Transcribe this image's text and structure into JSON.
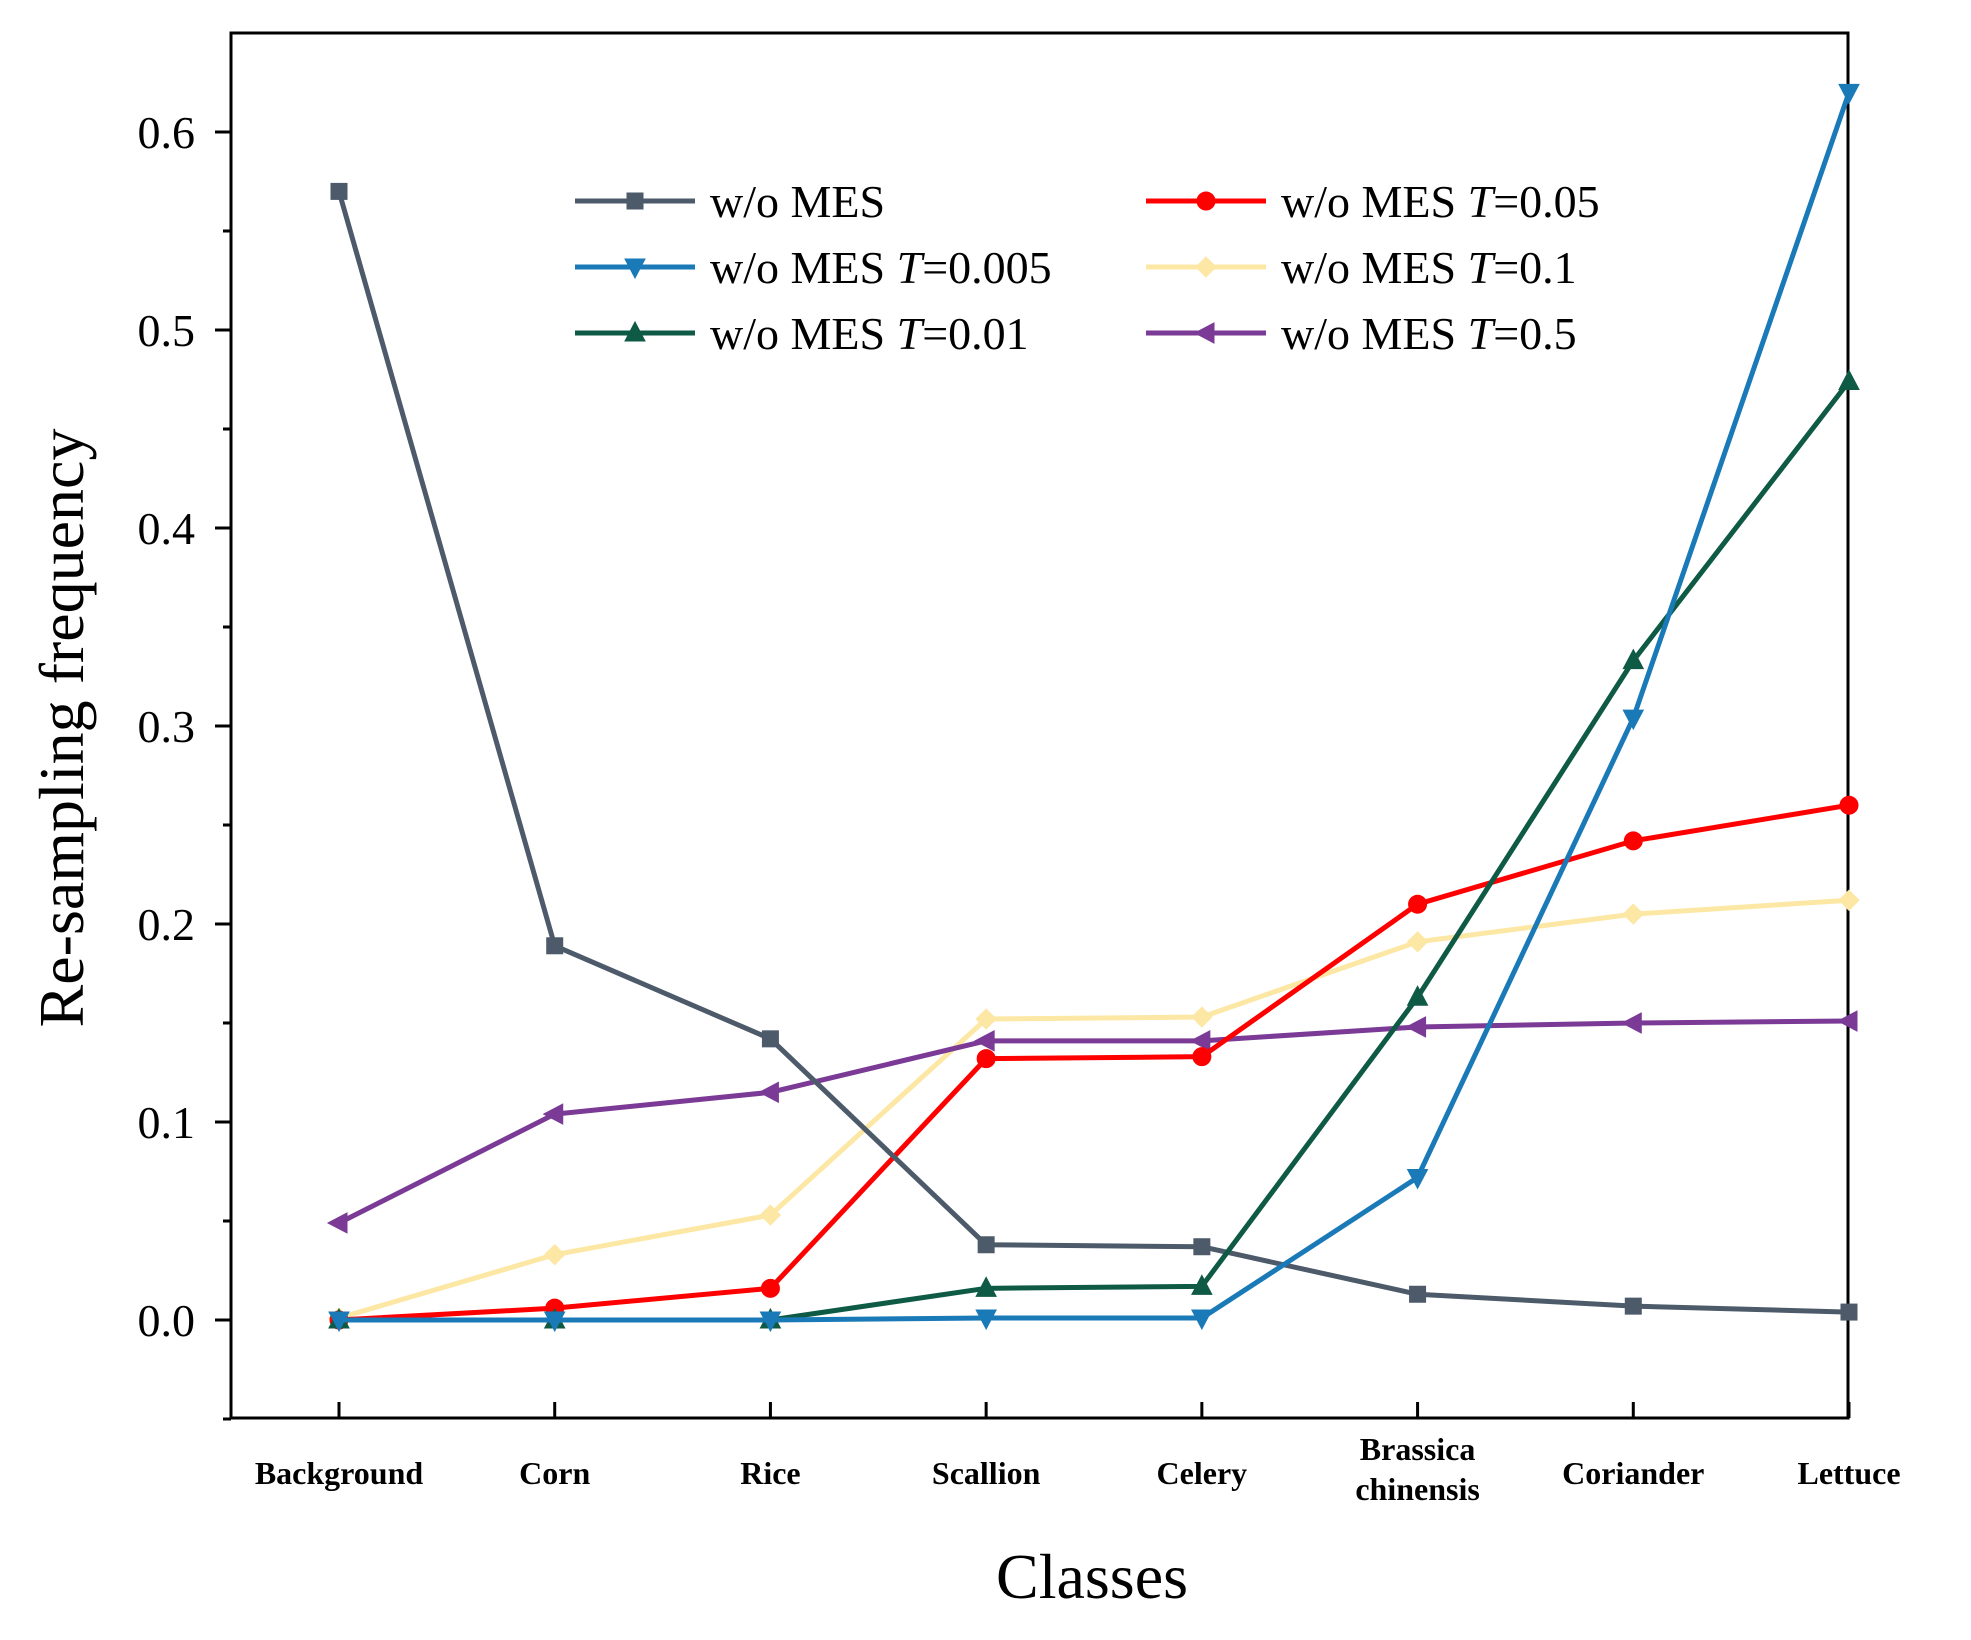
{
  "chart_data": {
    "type": "line",
    "title": "",
    "xlabel": "Classes",
    "ylabel": "Re-sampling frequency",
    "ylim": [
      -0.05,
      0.65
    ],
    "yticks": [
      0.0,
      0.1,
      0.2,
      0.3,
      0.4,
      0.5,
      0.6
    ],
    "ytick_labels": [
      "0.0",
      "0.1",
      "0.2",
      "0.3",
      "0.4",
      "0.5",
      "0.6"
    ],
    "categories": [
      "Background",
      "Corn",
      "Rice",
      "Scallion",
      "Celery",
      "Brassica chinensis",
      "Coriander",
      "Lettuce"
    ],
    "category_lines": [
      [
        "Background"
      ],
      [
        "Corn"
      ],
      [
        "Rice"
      ],
      [
        "Scallion"
      ],
      [
        "Celery"
      ],
      [
        "Brassica",
        "chinensis"
      ],
      [
        "Coriander"
      ],
      [
        "Lettuce"
      ]
    ],
    "legend_position": "top-center",
    "series": [
      {
        "name": "w/o MES",
        "label_prefix": "w/o MES",
        "T": "",
        "color": "#4d5a6a",
        "marker": "square",
        "values": [
          0.57,
          0.189,
          0.142,
          0.038,
          0.037,
          0.013,
          0.007,
          0.004
        ]
      },
      {
        "name": "w/o MES T=0.005",
        "label_prefix": "w/o MES ",
        "T": "0.005",
        "color": "#1a7ab8",
        "marker": "triangle-down",
        "values": [
          0.0,
          0.0,
          0.0,
          0.001,
          0.001,
          0.072,
          0.304,
          0.62
        ]
      },
      {
        "name": "w/o MES T=0.01",
        "label_prefix": "w/o MES ",
        "T": "0.01",
        "color": "#0e5a45",
        "marker": "triangle-up",
        "values": [
          0.0,
          0.0,
          0.0,
          0.016,
          0.017,
          0.163,
          0.333,
          0.474
        ]
      },
      {
        "name": "w/o MES T=0.05",
        "label_prefix": "w/o MES ",
        "T": "0.05",
        "color": "#ff0000",
        "marker": "circle",
        "values": [
          0.0,
          0.006,
          0.016,
          0.132,
          0.133,
          0.21,
          0.242,
          0.26
        ]
      },
      {
        "name": "w/o MES T=0.1",
        "label_prefix": "w/o MES ",
        "T": "0.1",
        "color": "#fde7a4",
        "marker": "diamond",
        "values": [
          0.001,
          0.033,
          0.053,
          0.152,
          0.153,
          0.191,
          0.205,
          0.212
        ]
      },
      {
        "name": "w/o MES T=0.5",
        "label_prefix": "w/o MES ",
        "T": "0.5",
        "color": "#7b3a95",
        "marker": "triangle-left",
        "values": [
          0.049,
          0.104,
          0.115,
          0.141,
          0.141,
          0.148,
          0.15,
          0.151
        ]
      }
    ]
  }
}
